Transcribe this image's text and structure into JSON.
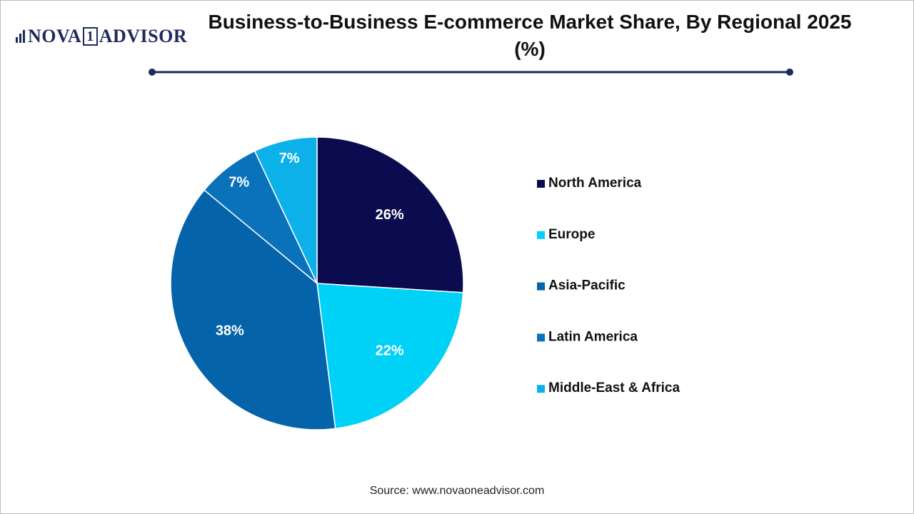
{
  "logo": {
    "left": "NOVA",
    "mark": "1",
    "right": "ADVISOR"
  },
  "chart_data": {
    "type": "pie",
    "title": "Business-to-Business E-commerce Market Share, By Regional 2025 (%)",
    "categories": [
      "North America",
      "Europe",
      "Asia-Pacific",
      "Latin America",
      "Middle-East & Africa"
    ],
    "values": [
      26,
      22,
      38,
      7,
      7
    ],
    "value_labels": [
      "26%",
      "22%",
      "38%",
      "7%",
      "7%"
    ],
    "colors": [
      "#0b0b4f",
      "#00d1f7",
      "#0563a9",
      "#0a72bb",
      "#0db1ea"
    ],
    "legend": "right"
  },
  "source": "Source: www.novaoneadvisor.com"
}
